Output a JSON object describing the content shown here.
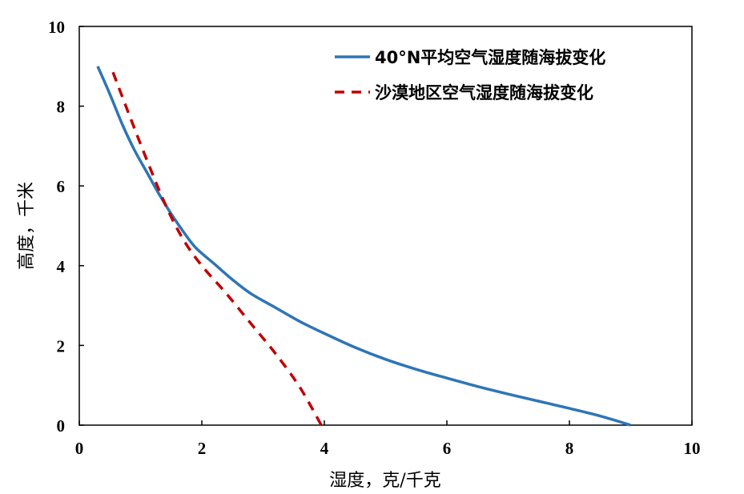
{
  "chart_data": {
    "type": "line",
    "title": "",
    "xlabel": "湿度，克/千克",
    "ylabel": "高度，千米",
    "xlim": [
      0,
      10
    ],
    "ylim": [
      0,
      10
    ],
    "x_ticks": [
      "0",
      "2",
      "4",
      "6",
      "8",
      "10"
    ],
    "y_ticks": [
      "0",
      "2",
      "4",
      "6",
      "8",
      "10"
    ],
    "grid": false,
    "legend_position": "top-right",
    "series": [
      {
        "name": "40°N平均空气湿度随海拔变化",
        "color": "#2e75b6",
        "style": "solid",
        "points": [
          [
            0.3,
            9.0
          ],
          [
            0.5,
            8.3
          ],
          [
            0.7,
            7.55
          ],
          [
            0.9,
            6.9
          ],
          [
            1.1,
            6.35
          ],
          [
            1.3,
            5.8
          ],
          [
            1.5,
            5.3
          ],
          [
            1.7,
            4.85
          ],
          [
            1.9,
            4.45
          ],
          [
            2.2,
            4.05
          ],
          [
            2.5,
            3.65
          ],
          [
            2.8,
            3.3
          ],
          [
            3.2,
            2.95
          ],
          [
            3.6,
            2.6
          ],
          [
            4.0,
            2.3
          ],
          [
            4.5,
            1.95
          ],
          [
            5.0,
            1.65
          ],
          [
            5.5,
            1.4
          ],
          [
            6.0,
            1.18
          ],
          [
            6.5,
            0.97
          ],
          [
            7.0,
            0.78
          ],
          [
            7.5,
            0.6
          ],
          [
            8.0,
            0.42
          ],
          [
            8.5,
            0.23
          ],
          [
            9.0,
            0.0
          ]
        ]
      },
      {
        "name": "沙漠地区空气湿度随海拔变化",
        "color": "#c00000",
        "style": "dashed",
        "points": [
          [
            0.55,
            8.85
          ],
          [
            1.0,
            7.05
          ],
          [
            1.4,
            5.55
          ],
          [
            1.7,
            4.65
          ],
          [
            2.0,
            4.0
          ],
          [
            2.4,
            3.3
          ],
          [
            2.8,
            2.55
          ],
          [
            3.2,
            1.8
          ],
          [
            3.6,
            0.95
          ],
          [
            3.95,
            0.0
          ]
        ]
      }
    ]
  }
}
